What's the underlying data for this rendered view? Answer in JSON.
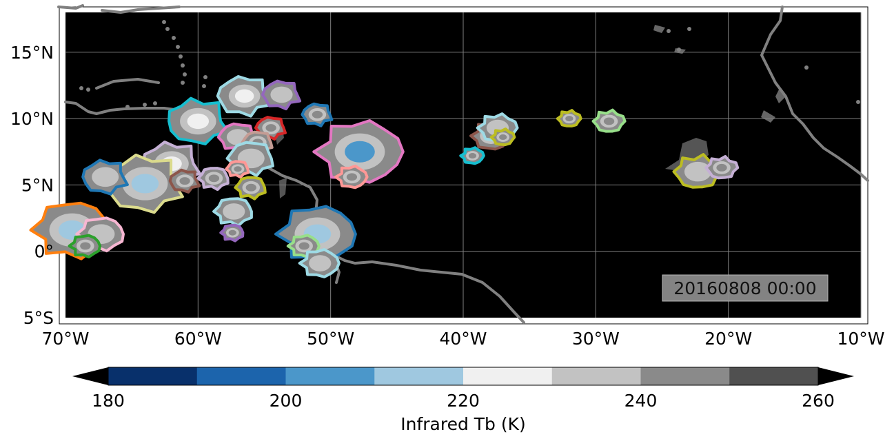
{
  "map": {
    "lon_ticks": [
      "70°W",
      "60°W",
      "50°W",
      "40°W",
      "30°W",
      "20°W",
      "10°W"
    ],
    "lat_ticks": [
      "15°N",
      "10°N",
      "5°N",
      "0°",
      "5°S"
    ],
    "lon_range": [
      -70,
      -10
    ],
    "lat_range": [
      -5,
      18
    ],
    "background": "#000000",
    "coastline_color": "#808080",
    "gridline_color": "#808080",
    "timestamp": "20160808 00:00"
  },
  "colorbar": {
    "label": "Infrared Tb (K)",
    "ticks": [
      "180",
      "200",
      "220",
      "240",
      "260"
    ],
    "levels": [
      180,
      190,
      200,
      210,
      220,
      230,
      240,
      250,
      260
    ],
    "colors": [
      "#08306b",
      "#1c64ac",
      "#4b97ca",
      "#9fc8e0",
      "#f0f0f0",
      "#c2c2c2",
      "#8a8a8a",
      "#505050"
    ],
    "extend": "both",
    "extend_min_color": "#000000",
    "extend_max_color": "#000000"
  },
  "cloud_objects": [
    {
      "lon": -60.0,
      "lat": 9.8,
      "outline": "#17becf",
      "min_tb": 220
    },
    {
      "lon": -62.0,
      "lat": 6.6,
      "outline": "#c5b0d5",
      "min_tb": 222
    },
    {
      "lon": -64.0,
      "lat": 5.1,
      "outline": "#dbdb8d",
      "min_tb": 210
    },
    {
      "lon": -67.0,
      "lat": 5.6,
      "outline": "#1f77b4",
      "min_tb": 230
    },
    {
      "lon": -61.0,
      "lat": 5.3,
      "outline": "#8c564b",
      "min_tb": 240
    },
    {
      "lon": -56.5,
      "lat": 11.7,
      "outline": "#9edae5",
      "min_tb": 225
    },
    {
      "lon": -53.7,
      "lat": 11.8,
      "outline": "#9467bd",
      "min_tb": 235
    },
    {
      "lon": -51.0,
      "lat": 10.3,
      "outline": "#1f77b4",
      "min_tb": 240
    },
    {
      "lon": -54.5,
      "lat": 9.3,
      "outline": "#d62728",
      "min_tb": 240
    },
    {
      "lon": -57.0,
      "lat": 8.6,
      "outline": "#e377c2",
      "min_tb": 235
    },
    {
      "lon": -55.5,
      "lat": 8.2,
      "outline": "#c49c94",
      "min_tb": 240
    },
    {
      "lon": -56.0,
      "lat": 7.0,
      "outline": "#9edae5",
      "min_tb": 230
    },
    {
      "lon": -57.0,
      "lat": 6.2,
      "outline": "#ff9896",
      "min_tb": 245
    },
    {
      "lon": -56.0,
      "lat": 4.8,
      "outline": "#bcbd22",
      "min_tb": 240
    },
    {
      "lon": -58.8,
      "lat": 5.5,
      "outline": "#c5b0d5",
      "min_tb": 240
    },
    {
      "lon": -57.3,
      "lat": 3.0,
      "outline": "#9edae5",
      "min_tb": 235
    },
    {
      "lon": -57.4,
      "lat": 1.4,
      "outline": "#9467bd",
      "min_tb": 245
    },
    {
      "lon": -69.5,
      "lat": 1.6,
      "outline": "#ff7f0e",
      "min_tb": 210
    },
    {
      "lon": -67.3,
      "lat": 1.3,
      "outline": "#f7b6d2",
      "min_tb": 230
    },
    {
      "lon": -68.5,
      "lat": 0.4,
      "outline": "#2ca02c",
      "min_tb": 240
    },
    {
      "lon": -51.0,
      "lat": 1.3,
      "outline": "#1f77b4",
      "min_tb": 210
    },
    {
      "lon": -52.0,
      "lat": 0.4,
      "outline": "#98df8a",
      "min_tb": 240
    },
    {
      "lon": -50.8,
      "lat": -0.9,
      "outline": "#9edae5",
      "min_tb": 235
    },
    {
      "lon": -47.8,
      "lat": 7.5,
      "outline": "#e377c2",
      "min_tb": 205
    },
    {
      "lon": -48.4,
      "lat": 5.6,
      "outline": "#ff9896",
      "min_tb": 240
    },
    {
      "lon": -39.3,
      "lat": 7.2,
      "outline": "#17becf",
      "min_tb": 245
    },
    {
      "lon": -37.9,
      "lat": 8.7,
      "outline": "#8c564b",
      "min_tb": 235
    },
    {
      "lon": -37.4,
      "lat": 9.3,
      "outline": "#9edae5",
      "min_tb": 235
    },
    {
      "lon": -37.0,
      "lat": 8.6,
      "outline": "#bcbd22",
      "min_tb": 245
    },
    {
      "lon": -32.0,
      "lat": 10.0,
      "outline": "#bcbd22",
      "min_tb": 245
    },
    {
      "lon": -29.0,
      "lat": 9.8,
      "outline": "#98df8a",
      "min_tb": 240
    },
    {
      "lon": -22.3,
      "lat": 6.0,
      "outline": "#bcbd22",
      "min_tb": 230
    },
    {
      "lon": -20.5,
      "lat": 6.3,
      "outline": "#c5b0d5",
      "min_tb": 240
    }
  ]
}
